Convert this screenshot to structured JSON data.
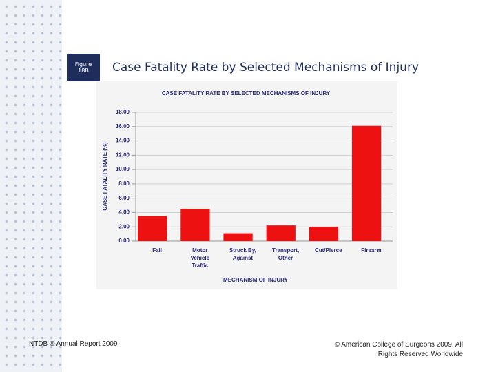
{
  "badge": [
    "Figure",
    "18B"
  ],
  "slide_title": "Case Fatality Rate by Selected Mechanisms of Injury",
  "footer_left": "NTDB ® Annual Report 2009",
  "footer_right": [
    "© American College of Surgeons 2009.  All",
    "Rights Reserved Worldwide"
  ],
  "chart_data": {
    "type": "bar",
    "title": "CASE FATALITY RATE BY SELECTED MECHANISMS OF INJURY",
    "x_label": "MECHANISM OF INJURY",
    "y_label": "CASE FATALITY RATE (%)",
    "categories": [
      "Fall",
      "Motor\nVehicle\nTraffic",
      "Struck By,\nAgainst",
      "Transport,\nOther",
      "Cut/Pierce",
      "Firearm"
    ],
    "values": [
      3.5,
      4.5,
      1.1,
      2.2,
      2.0,
      16.1
    ],
    "color": "#ee1111",
    "ylim": [
      0,
      18
    ],
    "yticks": [
      {
        "value": 0,
        "label": "0.00"
      },
      {
        "value": 2,
        "label": "2.00"
      },
      {
        "value": 4,
        "label": "4.00"
      },
      {
        "value": 6,
        "label": "6.00"
      },
      {
        "value": 8,
        "label": "8.00"
      },
      {
        "value": 10,
        "label": "10.00"
      },
      {
        "value": 12,
        "label": "12.00"
      },
      {
        "value": 14,
        "label": "14.00"
      },
      {
        "value": 16,
        "label": "16.00"
      },
      {
        "value": 18,
        "label": "18.00"
      }
    ],
    "grid": true
  }
}
